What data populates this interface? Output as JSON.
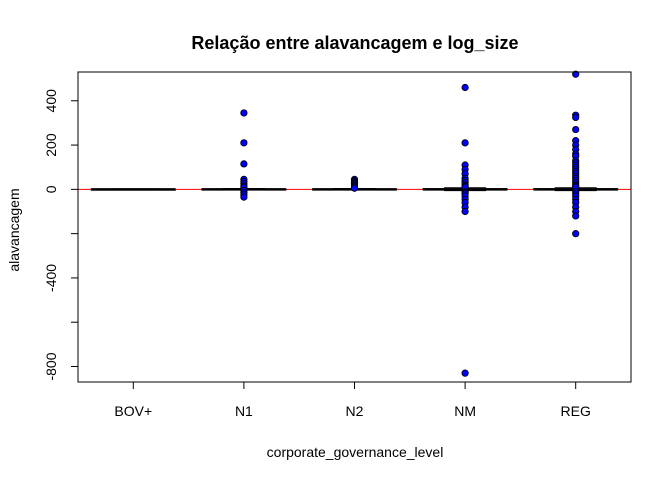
{
  "chart_data": {
    "type": "boxplot",
    "title": "Relação entre alavancagem e log_size",
    "xlabel": "corporate_governance_level",
    "ylabel": "alavancagem",
    "categories": [
      "BOV+",
      "N1",
      "N2",
      "NM",
      "REG"
    ],
    "ylim": [
      -870,
      530
    ],
    "yticks": [
      -800,
      -600,
      -400,
      -200,
      0,
      200,
      400
    ],
    "ytick_labels": [
      "-800",
      "",
      "-400",
      "",
      "0",
      "200",
      "400"
    ],
    "hline": {
      "y": 0,
      "color": "#ff0000"
    },
    "box_color": "#000000",
    "point_color": "#0000ff",
    "boxes": [
      {
        "category": "BOV+",
        "q1": -1,
        "median": 0,
        "q3": 1,
        "whisker_low": -2,
        "whisker_high": 2,
        "outliers": []
      },
      {
        "category": "N1",
        "q1": -1,
        "median": 0,
        "q3": 2,
        "whisker_low": -3,
        "whisker_high": 4,
        "outliers": [
          345,
          210,
          115,
          45,
          35,
          25,
          15,
          10,
          -5,
          -15,
          -25,
          -35
        ]
      },
      {
        "category": "N2",
        "q1": -1,
        "median": 0,
        "q3": 2,
        "whisker_low": -3,
        "whisker_high": 4,
        "outliers": [
          45,
          40,
          35,
          30,
          25,
          20,
          15,
          10,
          5
        ]
      },
      {
        "category": "NM",
        "q1": -2,
        "median": 0,
        "q3": 3,
        "whisker_low": -6,
        "whisker_high": 7,
        "outliers": [
          460,
          210,
          110,
          90,
          70,
          50,
          40,
          30,
          20,
          15,
          10,
          -10,
          -15,
          -20,
          -30,
          -45,
          -60,
          -80,
          -100,
          -830
        ]
      },
      {
        "category": "REG",
        "q1": -2,
        "median": 0,
        "q3": 3,
        "whisker_low": -6,
        "whisker_high": 7,
        "outliers": [
          520,
          335,
          325,
          270,
          220,
          200,
          180,
          160,
          150,
          130,
          120,
          110,
          100,
          90,
          80,
          70,
          60,
          50,
          40,
          30,
          20,
          15,
          10,
          -10,
          -20,
          -30,
          -45,
          -60,
          -80,
          -100,
          -120,
          -200
        ]
      }
    ]
  }
}
